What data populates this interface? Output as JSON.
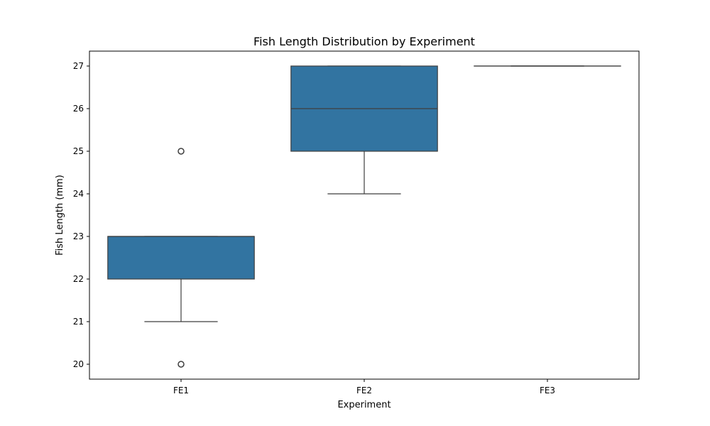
{
  "chart_data": {
    "type": "box",
    "title": "Fish Length Distribution by Experiment",
    "xlabel": "Experiment",
    "ylabel": "Fish Length (mm)",
    "categories": [
      "FE1",
      "FE2",
      "FE3"
    ],
    "ylim": [
      19.65,
      27.35
    ],
    "yticks": [
      20,
      21,
      22,
      23,
      24,
      25,
      26,
      27
    ],
    "box_color": "#3274a1",
    "line_color": "#3f3f3f",
    "boxes": [
      {
        "category": "FE1",
        "whisker_low": 21,
        "q1": 22,
        "median": 23,
        "q3": 23,
        "whisker_high": 23,
        "outliers": [
          20,
          25
        ]
      },
      {
        "category": "FE2",
        "whisker_low": 24,
        "q1": 25,
        "median": 26,
        "q3": 27,
        "whisker_high": 27,
        "outliers": []
      },
      {
        "category": "FE3",
        "whisker_low": 27,
        "q1": 27,
        "median": 27,
        "q3": 27,
        "whisker_high": 27,
        "outliers": []
      }
    ]
  }
}
